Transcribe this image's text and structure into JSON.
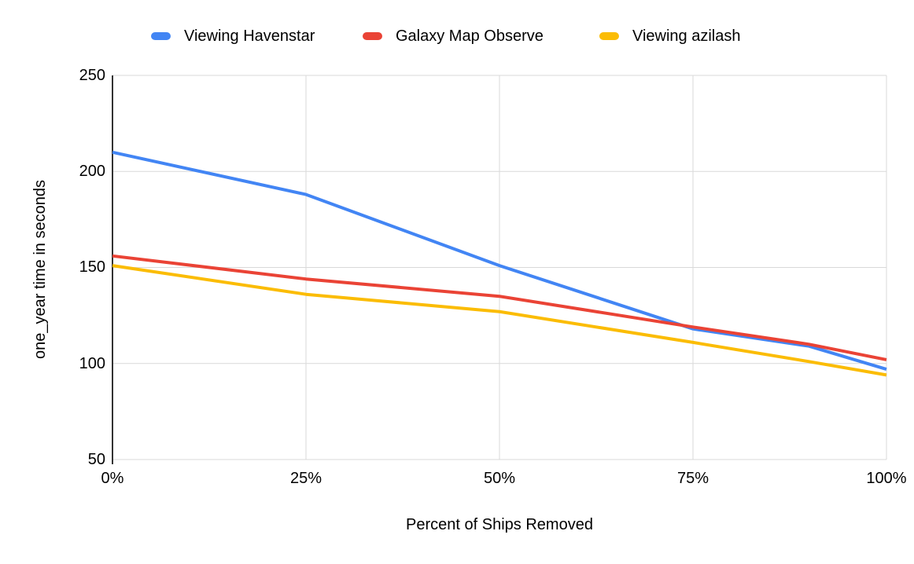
{
  "legend": {
    "items": [
      {
        "label": "Viewing Havenstar",
        "color": "#4285F4"
      },
      {
        "label": "Galaxy Map Observe",
        "color": "#EA4335"
      },
      {
        "label": "Viewing azilash",
        "color": "#FBBC04"
      }
    ]
  },
  "chart_data": {
    "type": "line",
    "title": "",
    "xlabel": "Percent of Ships Removed",
    "ylabel": "one_year time in seconds",
    "x": [
      0,
      25,
      50,
      75,
      90,
      100
    ],
    "series": [
      {
        "name": "Viewing Havenstar",
        "color": "#4285F4",
        "values": [
          210,
          188,
          151,
          118,
          109,
          97
        ]
      },
      {
        "name": "Galaxy Map Observe",
        "color": "#EA4335",
        "values": [
          156,
          144,
          135,
          119,
          110,
          102
        ]
      },
      {
        "name": "Viewing azilash",
        "color": "#FBBC04",
        "values": [
          151,
          136,
          127,
          111,
          101,
          94
        ]
      }
    ],
    "xlim": [
      0,
      100
    ],
    "ylim": [
      50,
      250
    ],
    "x_ticks": [
      0,
      25,
      50,
      75,
      100
    ],
    "x_tick_labels": [
      "0%",
      "25%",
      "50%",
      "75%",
      "100%"
    ],
    "y_ticks": [
      50,
      100,
      150,
      200,
      250
    ],
    "y_tick_labels": [
      "50",
      "100",
      "150",
      "200",
      "250"
    ],
    "grid": true,
    "legend_position": "top",
    "line_width": 4,
    "colors": {
      "grid": "#d9d9d9",
      "axis": "#333333",
      "text": "#000000",
      "background": "#ffffff"
    }
  }
}
